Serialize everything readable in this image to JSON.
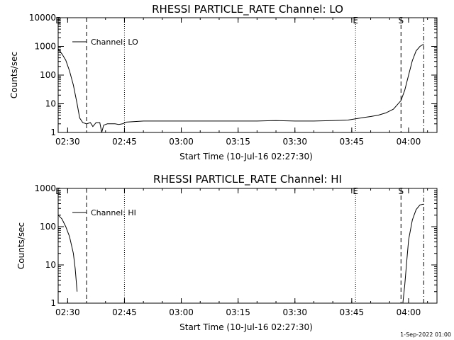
{
  "footer": {
    "timestamp": "1-Sep-2022 01:00"
  },
  "chart_data": [
    {
      "type": "line",
      "title": "RHESSI PARTICLE_RATE Channel: LO",
      "xlabel": "Start Time (10-Jul-16 02:27:30)",
      "ylabel": "Counts/sec",
      "yscale": "log",
      "ylim": [
        1,
        10000
      ],
      "xlim": [
        "02:27:30",
        "04:07:30"
      ],
      "xticks": [
        "02:30",
        "02:45",
        "03:00",
        "03:15",
        "03:30",
        "03:45",
        "04:00"
      ],
      "yticks": [
        "1",
        "10",
        "100",
        "1000",
        "10000"
      ],
      "legend": {
        "position": "top-left",
        "entries": [
          "Channel: LO"
        ]
      },
      "markers": [
        {
          "label": "E",
          "time": "02:27:30",
          "style": "dotted"
        },
        {
          "label": "",
          "time": "02:35:00",
          "style": "dashed"
        },
        {
          "label": "",
          "time": "02:45:00",
          "style": "dotted"
        },
        {
          "label": "E",
          "time": "03:46:00",
          "style": "dotted"
        },
        {
          "label": "S",
          "time": "03:58:00",
          "style": "dashed"
        },
        {
          "label": "",
          "time": "04:04:00",
          "style": "dashdot"
        }
      ],
      "series": [
        {
          "name": "Channel: LO",
          "points": [
            [
              "02:27:30",
              800
            ],
            [
              "02:28:30",
              550
            ],
            [
              "02:29:30",
              330
            ],
            [
              "02:30:30",
              140
            ],
            [
              "02:31:30",
              45
            ],
            [
              "02:32:30",
              10
            ],
            [
              "02:33:10",
              3.2
            ],
            [
              "02:34:00",
              2.2
            ],
            [
              "02:35:00",
              2.0
            ],
            [
              "02:36:00",
              2.2
            ],
            [
              "02:36:40",
              1.6
            ],
            [
              "02:37:30",
              2.2
            ],
            [
              "02:38:30",
              2.2
            ],
            [
              "02:39:00",
              1.0
            ],
            [
              "02:39:30",
              1.8
            ],
            [
              "02:40:30",
              2.0
            ],
            [
              "02:41:30",
              2.0
            ],
            [
              "02:42:30",
              2.0
            ],
            [
              "02:43:30",
              1.9
            ],
            [
              "02:44:30",
              2.0
            ],
            [
              "02:45:30",
              2.3
            ],
            [
              "02:50:00",
              2.5
            ],
            [
              "02:55:00",
              2.5
            ],
            [
              "03:00:00",
              2.5
            ],
            [
              "03:05:00",
              2.5
            ],
            [
              "03:10:00",
              2.5
            ],
            [
              "03:15:00",
              2.5
            ],
            [
              "03:20:00",
              2.5
            ],
            [
              "03:25:00",
              2.6
            ],
            [
              "03:30:00",
              2.5
            ],
            [
              "03:35:00",
              2.5
            ],
            [
              "03:40:00",
              2.6
            ],
            [
              "03:44:00",
              2.7
            ],
            [
              "03:46:00",
              3.0
            ],
            [
              "03:48:00",
              3.3
            ],
            [
              "03:50:00",
              3.6
            ],
            [
              "03:52:00",
              4.0
            ],
            [
              "03:54:00",
              4.8
            ],
            [
              "03:56:00",
              6.5
            ],
            [
              "03:58:00",
              13
            ],
            [
              "03:59:00",
              30
            ],
            [
              "04:00:00",
              100
            ],
            [
              "04:01:00",
              320
            ],
            [
              "04:02:00",
              700
            ],
            [
              "04:03:00",
              1000
            ],
            [
              "04:04:00",
              1200
            ]
          ]
        }
      ]
    },
    {
      "type": "line",
      "title": "RHESSI PARTICLE_RATE Channel: HI",
      "xlabel": "Start Time (10-Jul-16 02:27:30)",
      "ylabel": "Counts/sec",
      "yscale": "log",
      "ylim": [
        1,
        1000
      ],
      "xlim": [
        "02:27:30",
        "04:07:30"
      ],
      "xticks": [
        "02:30",
        "02:45",
        "03:00",
        "03:15",
        "03:30",
        "03:45",
        "04:00"
      ],
      "yticks": [
        "1",
        "10",
        "100",
        "1000"
      ],
      "legend": {
        "position": "top-left",
        "entries": [
          "Channel: HI"
        ]
      },
      "markers": [
        {
          "label": "E",
          "time": "02:27:30",
          "style": "dotted"
        },
        {
          "label": "",
          "time": "02:35:00",
          "style": "dashed"
        },
        {
          "label": "",
          "time": "02:45:00",
          "style": "dotted"
        },
        {
          "label": "E",
          "time": "03:46:00",
          "style": "dotted"
        },
        {
          "label": "S",
          "time": "03:58:00",
          "style": "dashed"
        },
        {
          "label": "",
          "time": "04:04:00",
          "style": "dashdot"
        }
      ],
      "series": [
        {
          "name": "Channel: HI",
          "segments": [
            [
              [
                "02:27:30",
                200
              ],
              [
                "02:28:30",
                160
              ],
              [
                "02:29:30",
                100
              ],
              [
                "02:30:30",
                55
              ],
              [
                "02:31:30",
                20
              ],
              [
                "02:32:00",
                8
              ],
              [
                "02:32:30",
                2.0
              ]
            ],
            [
              [
                "03:58:30",
                1.0
              ],
              [
                "03:59:00",
                3.0
              ],
              [
                "03:59:30",
                12
              ],
              [
                "04:00:00",
                45
              ],
              [
                "04:01:00",
                150
              ],
              [
                "04:02:00",
                280
              ],
              [
                "04:03:00",
                370
              ],
              [
                "04:04:00",
                390
              ]
            ]
          ]
        }
      ]
    }
  ]
}
